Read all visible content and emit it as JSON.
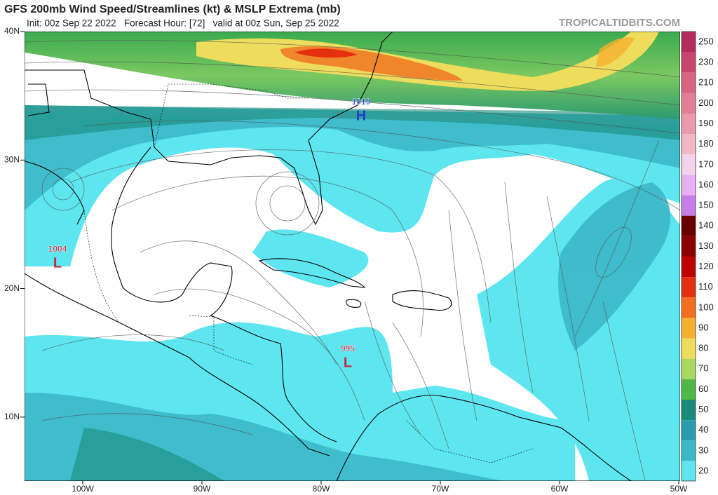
{
  "header": {
    "title": "GFS 200mb Wind Speed/Streamlines (kt) & MSLP Extrema (mb)",
    "subtitle": "Init: 00z Sep 22 2022   Forecast Hour: [72]   valid at 00z Sun, Sep 25 2022",
    "site": "TROPICALTIDBITS.COM"
  },
  "map": {
    "lat_labels": [
      "40N",
      "30N",
      "20N",
      "10N"
    ],
    "lon_labels": [
      "100W",
      "90W",
      "80W",
      "70W",
      "60W",
      "50W"
    ],
    "pressure_centers": [
      {
        "value": 1019,
        "symbol": "H"
      },
      {
        "value": 1004,
        "symbol": "L"
      },
      {
        "value": 995,
        "symbol": "L"
      }
    ]
  },
  "legend": {
    "levels": [
      250,
      230,
      210,
      200,
      190,
      180,
      170,
      160,
      150,
      140,
      130,
      120,
      110,
      100,
      90,
      80,
      70,
      60,
      50,
      40,
      30,
      20
    ],
    "colors": [
      "#b42c5c",
      "#c8466e",
      "#d86480",
      "#e27f94",
      "#ea9aaa",
      "#f1b7c4",
      "#f3d3ec",
      "#e6b0f2",
      "#c77de6",
      "#6a0000",
      "#8b0000",
      "#c00000",
      "#e53010",
      "#f07020",
      "#f5b030",
      "#eedc5c",
      "#a8d860",
      "#50b848",
      "#198a78",
      "#2a9cb0",
      "#3cb8c8",
      "#5ee6f0"
    ]
  }
}
